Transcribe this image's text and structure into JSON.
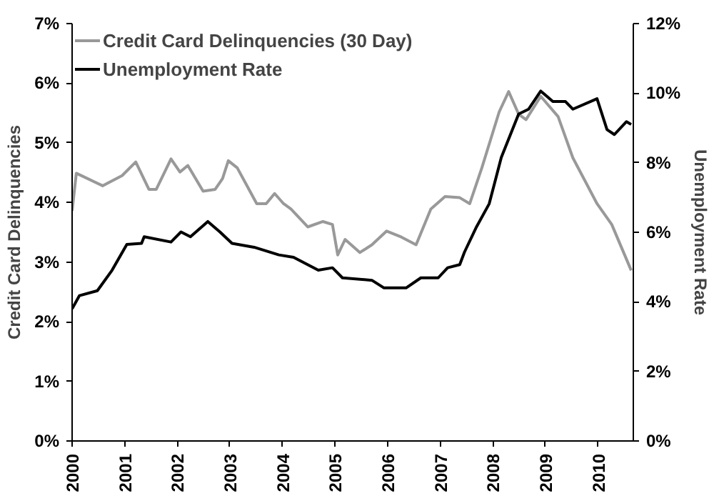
{
  "chart_data": {
    "type": "line",
    "ylabel": "Credit Card Delinquencies",
    "y2label": "Unemployment Rate",
    "xlim": [
      2000,
      2010.67
    ],
    "xticks": [
      2000,
      2001,
      2002,
      2003,
      2004,
      2005,
      2006,
      2007,
      2008,
      2009,
      2010
    ],
    "ylim": [
      0,
      7
    ],
    "yticks": [
      {
        "value": 0,
        "label": "0%"
      },
      {
        "value": 1,
        "label": "1%"
      },
      {
        "value": 2,
        "label": "2%"
      },
      {
        "value": 3,
        "label": "3%"
      },
      {
        "value": 4,
        "label": "4%"
      },
      {
        "value": 5,
        "label": "5%"
      },
      {
        "value": 6,
        "label": "6%"
      },
      {
        "value": 7,
        "label": "7%"
      }
    ],
    "y2lim": [
      0,
      12
    ],
    "y2ticks": [
      {
        "value": 0,
        "label": "0%"
      },
      {
        "value": 2,
        "label": "2%"
      },
      {
        "value": 4,
        "label": "4%"
      },
      {
        "value": 6,
        "label": "6%"
      },
      {
        "value": 8,
        "label": "8%"
      },
      {
        "value": 10,
        "label": "10%"
      },
      {
        "value": 12,
        "label": "12%"
      }
    ],
    "grid": false,
    "legend": "top left",
    "marker": "none",
    "line_style": "solid",
    "series": [
      {
        "name": "Credit Card Delinquencies (30 Day)",
        "color": "#999999",
        "x": [
          2000.0,
          2000.08,
          2000.58,
          2000.95,
          2001.21,
          2001.46,
          2001.6,
          2001.88,
          2002.05,
          2002.2,
          2002.49,
          2002.72,
          2002.86,
          2002.97,
          2003.14,
          2003.51,
          2003.69,
          2003.85,
          2004.02,
          2004.16,
          2004.48,
          2004.77,
          2004.95,
          2005.05,
          2005.19,
          2005.47,
          2005.7,
          2005.98,
          2006.26,
          2006.54,
          2006.82,
          2007.09,
          2007.37,
          2007.56,
          2007.79,
          2008.12,
          2008.3,
          2008.49,
          2008.63,
          2008.91,
          2009.24,
          2009.52,
          2009.98,
          2010.26,
          2010.63
        ],
        "values": [
          3.86,
          4.49,
          4.28,
          4.45,
          4.68,
          4.22,
          4.22,
          4.73,
          4.51,
          4.62,
          4.19,
          4.22,
          4.4,
          4.7,
          4.58,
          3.98,
          3.98,
          4.15,
          3.98,
          3.89,
          3.59,
          3.68,
          3.63,
          3.12,
          3.38,
          3.16,
          3.29,
          3.52,
          3.42,
          3.29,
          3.89,
          4.1,
          4.08,
          3.98,
          4.58,
          5.52,
          5.86,
          5.48,
          5.39,
          5.78,
          5.44,
          4.75,
          3.98,
          3.63,
          2.86
        ]
      },
      {
        "name": "Unemployment Rate",
        "color": "#000000",
        "axis": "y2",
        "x": [
          2000.0,
          2000.14,
          2000.48,
          2000.76,
          2001.04,
          2001.32,
          2001.37,
          2001.88,
          2002.07,
          2002.25,
          2002.58,
          2002.81,
          2003.04,
          2003.46,
          2003.93,
          2004.21,
          2004.68,
          2004.95,
          2005.14,
          2005.7,
          2005.93,
          2006.35,
          2006.63,
          2006.96,
          2007.14,
          2007.37,
          2007.46,
          2007.69,
          2007.93,
          2008.16,
          2008.49,
          2008.68,
          2008.91,
          2009.14,
          2009.38,
          2009.52,
          2009.98,
          2010.17,
          2010.31,
          2010.54,
          2010.63
        ],
        "values": [
          3.8,
          4.18,
          4.32,
          4.91,
          5.65,
          5.68,
          5.87,
          5.72,
          6.01,
          5.87,
          6.31,
          6.01,
          5.68,
          5.57,
          5.35,
          5.28,
          4.91,
          4.98,
          4.69,
          4.62,
          4.4,
          4.4,
          4.69,
          4.69,
          4.98,
          5.07,
          5.43,
          6.16,
          6.82,
          8.15,
          9.4,
          9.54,
          10.06,
          9.76,
          9.76,
          9.54,
          9.84,
          8.95,
          8.81,
          9.18,
          9.1
        ]
      }
    ]
  }
}
